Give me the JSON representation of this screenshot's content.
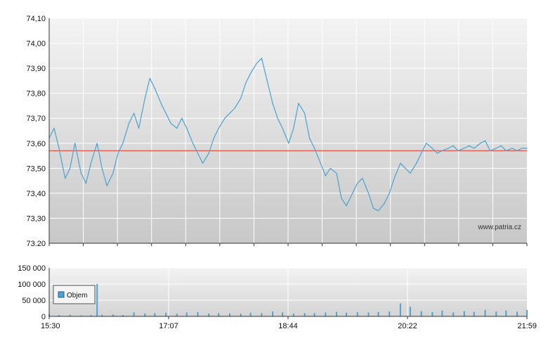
{
  "chart_data": [
    {
      "type": "line",
      "title": "",
      "xlabel": "",
      "ylabel": "",
      "ylim": [
        73.2,
        74.1
      ],
      "y_ticks": [
        "74,10",
        "74,00",
        "73,90",
        "73,80",
        "73,70",
        "73,60",
        "73,50",
        "73,40",
        "73,30",
        "73.20"
      ],
      "reference_line": 73.57,
      "reference_line_color": "#e05a4e",
      "line_color": "#4aa3d0",
      "grid": true,
      "watermark": "www.patria.cz",
      "series": [
        {
          "x": [
            "15:30",
            "15:34",
            "15:38",
            "15:43",
            "15:47",
            "15:51",
            "15:56",
            "16:00",
            "16:04",
            "16:09",
            "16:13",
            "16:17",
            "16:22",
            "16:26",
            "16:30",
            "16:35",
            "16:39",
            "16:43",
            "16:48",
            "16:52",
            "16:56",
            "17:01",
            "17:05",
            "17:09",
            "17:14",
            "17:18",
            "17:22",
            "17:27",
            "17:31",
            "17:35",
            "17:40",
            "17:44",
            "17:48",
            "17:53",
            "17:57",
            "18:01",
            "18:06",
            "18:10",
            "18:14",
            "18:19",
            "18:23",
            "18:27",
            "18:32",
            "18:36",
            "18:40",
            "18:45",
            "18:49",
            "18:53",
            "18:58",
            "19:02",
            "19:06",
            "19:11",
            "19:15",
            "19:19",
            "19:24",
            "19:28",
            "19:32",
            "19:37",
            "19:41",
            "19:45",
            "19:50",
            "19:54",
            "19:58",
            "20:03",
            "20:07",
            "20:11",
            "20:16",
            "20:20",
            "20:24",
            "20:29",
            "20:33",
            "20:37",
            "20:42",
            "20:46",
            "20:50",
            "20:55",
            "20:59",
            "21:03",
            "21:08",
            "21:12",
            "21:16",
            "21:21",
            "21:25",
            "21:29",
            "21:34",
            "21:38",
            "21:42",
            "21:47",
            "21:51",
            "21:55",
            "21:59"
          ],
          "values": [
            73.62,
            73.66,
            73.58,
            73.46,
            73.5,
            73.6,
            73.48,
            73.44,
            73.52,
            73.6,
            73.5,
            73.43,
            73.48,
            73.56,
            73.6,
            73.68,
            73.72,
            73.66,
            73.78,
            73.86,
            73.82,
            73.76,
            73.72,
            73.68,
            73.66,
            73.7,
            73.66,
            73.6,
            73.56,
            73.52,
            73.56,
            73.62,
            73.66,
            73.7,
            73.72,
            73.74,
            73.78,
            73.84,
            73.88,
            73.92,
            73.94,
            73.86,
            73.76,
            73.7,
            73.66,
            73.6,
            73.66,
            73.76,
            73.72,
            73.62,
            73.58,
            73.52,
            73.47,
            73.5,
            73.48,
            73.38,
            73.35,
            73.4,
            73.44,
            73.46,
            73.4,
            73.34,
            73.33,
            73.36,
            73.4,
            73.46,
            73.52,
            73.5,
            73.48,
            73.52,
            73.56,
            73.6,
            73.58,
            73.56,
            73.57,
            73.58,
            73.59,
            73.57,
            73.58,
            73.59,
            73.58,
            73.6,
            73.61,
            73.57,
            73.58,
            73.59,
            73.57,
            73.58,
            73.57,
            73.58,
            73.58
          ]
        }
      ]
    },
    {
      "type": "bar",
      "title": "",
      "xlabel": "",
      "ylabel": "",
      "ylim": [
        0,
        150000
      ],
      "y_ticks": [
        "150 000",
        "100 000",
        "50 000",
        "0"
      ],
      "x_ticks": [
        "15:30",
        "17:07",
        "18:44",
        "20:22",
        "21:59"
      ],
      "legend_position": "bottom-left",
      "bar_color": "#4aa3d0",
      "series": [
        {
          "name": "Objem",
          "x": [
            "15:30",
            "15:38",
            "15:47",
            "15:56",
            "16:04",
            "16:09",
            "16:13",
            "16:22",
            "16:30",
            "16:39",
            "16:48",
            "16:56",
            "17:05",
            "17:14",
            "17:22",
            "17:31",
            "17:40",
            "17:48",
            "17:57",
            "18:06",
            "18:14",
            "18:23",
            "18:32",
            "18:40",
            "18:49",
            "18:58",
            "19:06",
            "19:15",
            "19:24",
            "19:32",
            "19:41",
            "19:50",
            "19:58",
            "20:07",
            "20:16",
            "20:24",
            "20:33",
            "20:42",
            "20:50",
            "20:59",
            "21:08",
            "21:16",
            "21:25",
            "21:34",
            "21:42",
            "21:51",
            "21:59"
          ],
          "values": [
            6000,
            4000,
            5000,
            3000,
            4000,
            100000,
            5000,
            6000,
            4000,
            12000,
            9000,
            10000,
            11000,
            8000,
            12000,
            13000,
            9000,
            10000,
            9000,
            8000,
            11000,
            10000,
            15000,
            12000,
            9000,
            10000,
            10000,
            12000,
            14000,
            11000,
            13000,
            12000,
            14000,
            15000,
            40000,
            30000,
            16000,
            13000,
            18000,
            12000,
            16000,
            14000,
            20000,
            15000,
            18000,
            14000,
            20000
          ]
        }
      ]
    }
  ]
}
